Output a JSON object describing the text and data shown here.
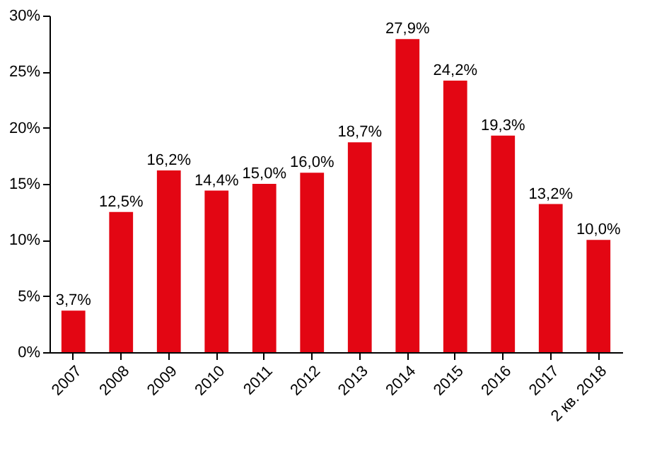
{
  "chart_data": {
    "type": "bar",
    "categories": [
      "2007",
      "2008",
      "2009",
      "2010",
      "2011",
      "2012",
      "2013",
      "2014",
      "2015",
      "2016",
      "2017",
      "2 кв. 2018"
    ],
    "values": [
      3.7,
      12.5,
      16.2,
      14.4,
      15.0,
      16.0,
      18.7,
      27.9,
      24.2,
      19.3,
      13.2,
      10.0
    ],
    "value_labels": [
      "3,7%",
      "12,5%",
      "16,2%",
      "14,4%",
      "15,0%",
      "16,0%",
      "18,7%",
      "27,9%",
      "24,2%",
      "19,3%",
      "13,2%",
      "10,0%"
    ],
    "color": "#e30613",
    "ylim": [
      0,
      30
    ],
    "yticks": [
      {
        "value": 0,
        "label": "0%"
      },
      {
        "value": 5,
        "label": "5%"
      },
      {
        "value": 10,
        "label": "10%"
      },
      {
        "value": 15,
        "label": "15%"
      },
      {
        "value": 20,
        "label": "20%"
      },
      {
        "value": 25,
        "label": "25%"
      },
      {
        "value": 30,
        "label": "30%"
      }
    ],
    "grid": false
  }
}
